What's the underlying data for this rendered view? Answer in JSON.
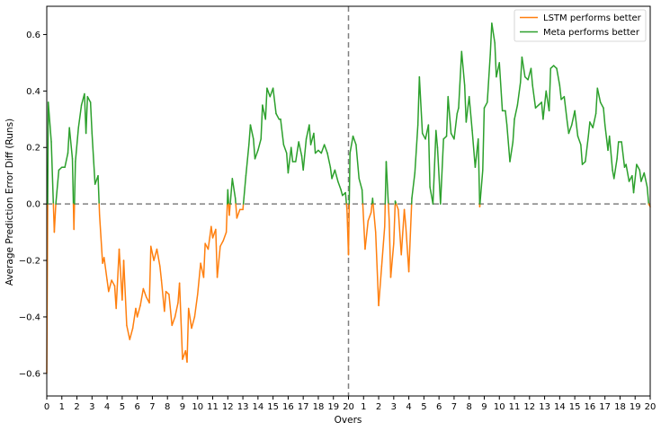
{
  "chart_data": {
    "type": "line",
    "xlabel": "Overs",
    "ylabel": "Average Prediction Error Diff (Runs)",
    "xlim": [
      0,
      40
    ],
    "ylim": [
      -0.68,
      0.7
    ],
    "x_tick_values": [
      0,
      1,
      2,
      3,
      4,
      5,
      6,
      7,
      8,
      9,
      10,
      11,
      12,
      13,
      14,
      15,
      16,
      17,
      18,
      19,
      20,
      21,
      22,
      23,
      24,
      25,
      26,
      27,
      28,
      29,
      30,
      31,
      32,
      33,
      34,
      35,
      36,
      37,
      38,
      39,
      40
    ],
    "x_tick_labels": [
      "0",
      "1",
      "2",
      "3",
      "4",
      "5",
      "6",
      "7",
      "8",
      "9",
      "10",
      "11",
      "12",
      "13",
      "14",
      "15",
      "16",
      "17",
      "18",
      "19",
      "20",
      "1",
      "2",
      "3",
      "4",
      "5",
      "6",
      "7",
      "8",
      "9",
      "10",
      "11",
      "12",
      "13",
      "14",
      "15",
      "16",
      "17",
      "18",
      "19",
      "20"
    ],
    "y_ticks": [
      -0.6,
      -0.4,
      -0.2,
      0.0,
      0.2,
      0.4,
      0.6
    ],
    "y_tick_labels": [
      "−0.6",
      "−0.4",
      "−0.2",
      "0.0",
      "0.2",
      "0.4",
      "0.6"
    ],
    "reference_lines": {
      "horizontal_y": 0.0,
      "vertical_x": 20,
      "style": "dashed",
      "color": "#808080"
    },
    "grid": false,
    "legend": {
      "position": "top-right",
      "entries": [
        {
          "label": "LSTM performs better",
          "color": "#ff7f0e"
        },
        {
          "label": "Meta performs better",
          "color": "#2ca02c"
        }
      ]
    },
    "colors": {
      "below_zero": "#ff7f0e",
      "above_zero": "#2ca02c"
    },
    "series": [
      {
        "points": [
          [
            0.0,
            -0.6
          ],
          [
            0.1,
            0.36
          ],
          [
            0.3,
            0.22
          ],
          [
            0.5,
            -0.1
          ],
          [
            0.6,
            0.0
          ],
          [
            0.8,
            0.12
          ],
          [
            1.0,
            0.13
          ],
          [
            1.2,
            0.13
          ],
          [
            1.4,
            0.18
          ],
          [
            1.5,
            0.27
          ],
          [
            1.7,
            0.16
          ],
          [
            1.8,
            -0.09
          ],
          [
            1.9,
            0.15
          ],
          [
            2.1,
            0.27
          ],
          [
            2.3,
            0.35
          ],
          [
            2.5,
            0.39
          ],
          [
            2.6,
            0.25
          ],
          [
            2.7,
            0.38
          ],
          [
            2.9,
            0.36
          ],
          [
            3.0,
            0.25
          ],
          [
            3.2,
            0.07
          ],
          [
            3.4,
            0.1
          ],
          [
            3.5,
            -0.04
          ],
          [
            3.7,
            -0.21
          ],
          [
            3.8,
            -0.19
          ],
          [
            4.0,
            -0.27
          ],
          [
            4.1,
            -0.31
          ],
          [
            4.3,
            -0.27
          ],
          [
            4.5,
            -0.29
          ],
          [
            4.6,
            -0.37
          ],
          [
            4.8,
            -0.16
          ],
          [
            5.0,
            -0.34
          ],
          [
            5.1,
            -0.2
          ],
          [
            5.3,
            -0.43
          ],
          [
            5.5,
            -0.48
          ],
          [
            5.7,
            -0.44
          ],
          [
            5.9,
            -0.37
          ],
          [
            6.0,
            -0.4
          ],
          [
            6.2,
            -0.36
          ],
          [
            6.4,
            -0.3
          ],
          [
            6.6,
            -0.33
          ],
          [
            6.8,
            -0.35
          ],
          [
            6.9,
            -0.15
          ],
          [
            7.1,
            -0.2
          ],
          [
            7.3,
            -0.16
          ],
          [
            7.5,
            -0.22
          ],
          [
            7.6,
            -0.27
          ],
          [
            7.8,
            -0.38
          ],
          [
            7.9,
            -0.31
          ],
          [
            8.1,
            -0.32
          ],
          [
            8.3,
            -0.43
          ],
          [
            8.5,
            -0.4
          ],
          [
            8.7,
            -0.35
          ],
          [
            8.8,
            -0.28
          ],
          [
            9.0,
            -0.55
          ],
          [
            9.2,
            -0.52
          ],
          [
            9.3,
            -0.56
          ],
          [
            9.4,
            -0.37
          ],
          [
            9.6,
            -0.44
          ],
          [
            9.8,
            -0.4
          ],
          [
            10.0,
            -0.32
          ],
          [
            10.2,
            -0.21
          ],
          [
            10.4,
            -0.26
          ],
          [
            10.5,
            -0.14
          ],
          [
            10.7,
            -0.16
          ],
          [
            10.9,
            -0.08
          ],
          [
            11.0,
            -0.12
          ],
          [
            11.2,
            -0.09
          ],
          [
            11.3,
            -0.26
          ],
          [
            11.5,
            -0.15
          ],
          [
            11.7,
            -0.13
          ],
          [
            11.9,
            -0.1
          ],
          [
            12.0,
            0.05
          ],
          [
            12.1,
            -0.04
          ],
          [
            12.3,
            0.09
          ],
          [
            12.5,
            0.02
          ],
          [
            12.6,
            -0.05
          ],
          [
            12.8,
            -0.02
          ],
          [
            13.0,
            -0.02
          ],
          [
            13.2,
            0.1
          ],
          [
            13.4,
            0.21
          ],
          [
            13.5,
            0.28
          ],
          [
            13.7,
            0.23
          ],
          [
            13.8,
            0.16
          ],
          [
            14.0,
            0.19
          ],
          [
            14.2,
            0.23
          ],
          [
            14.3,
            0.35
          ],
          [
            14.5,
            0.3
          ],
          [
            14.6,
            0.41
          ],
          [
            14.8,
            0.38
          ],
          [
            15.0,
            0.41
          ],
          [
            15.2,
            0.32
          ],
          [
            15.4,
            0.3
          ],
          [
            15.5,
            0.3
          ],
          [
            15.7,
            0.21
          ],
          [
            15.9,
            0.18
          ],
          [
            16.0,
            0.11
          ],
          [
            16.2,
            0.2
          ],
          [
            16.3,
            0.15
          ],
          [
            16.5,
            0.15
          ],
          [
            16.7,
            0.22
          ],
          [
            16.9,
            0.17
          ],
          [
            17.0,
            0.12
          ],
          [
            17.2,
            0.23
          ],
          [
            17.4,
            0.28
          ],
          [
            17.5,
            0.21
          ],
          [
            17.7,
            0.25
          ],
          [
            17.8,
            0.18
          ],
          [
            18.0,
            0.19
          ],
          [
            18.2,
            0.18
          ],
          [
            18.4,
            0.21
          ],
          [
            18.6,
            0.18
          ],
          [
            18.8,
            0.13
          ],
          [
            18.9,
            0.09
          ],
          [
            19.1,
            0.12
          ],
          [
            19.3,
            0.08
          ],
          [
            19.5,
            0.05
          ],
          [
            19.6,
            0.03
          ],
          [
            19.8,
            0.04
          ],
          [
            19.9,
            -0.02
          ],
          [
            20.0,
            -0.18
          ],
          [
            20.1,
            0.18
          ],
          [
            20.3,
            0.24
          ],
          [
            20.5,
            0.21
          ],
          [
            20.7,
            0.09
          ],
          [
            20.9,
            0.05
          ],
          [
            21.1,
            -0.16
          ],
          [
            21.3,
            -0.06
          ],
          [
            21.5,
            -0.03
          ],
          [
            21.6,
            0.02
          ],
          [
            21.8,
            -0.1
          ],
          [
            22.0,
            -0.36
          ],
          [
            22.2,
            -0.22
          ],
          [
            22.4,
            -0.08
          ],
          [
            22.5,
            0.15
          ],
          [
            22.7,
            -0.06
          ],
          [
            22.8,
            -0.26
          ],
          [
            23.0,
            -0.14
          ],
          [
            23.1,
            0.01
          ],
          [
            23.3,
            -0.02
          ],
          [
            23.5,
            -0.18
          ],
          [
            23.7,
            -0.02
          ],
          [
            23.8,
            -0.08
          ],
          [
            24.0,
            -0.24
          ],
          [
            24.2,
            0.02
          ],
          [
            24.4,
            0.11
          ],
          [
            24.6,
            0.28
          ],
          [
            24.7,
            0.45
          ],
          [
            24.9,
            0.25
          ],
          [
            25.1,
            0.23
          ],
          [
            25.3,
            0.28
          ],
          [
            25.4,
            0.06
          ],
          [
            25.6,
            0.0
          ],
          [
            25.8,
            0.26
          ],
          [
            25.9,
            0.2
          ],
          [
            26.1,
            0.0
          ],
          [
            26.3,
            0.23
          ],
          [
            26.5,
            0.24
          ],
          [
            26.6,
            0.38
          ],
          [
            26.8,
            0.25
          ],
          [
            27.0,
            0.23
          ],
          [
            27.2,
            0.32
          ],
          [
            27.3,
            0.34
          ],
          [
            27.5,
            0.54
          ],
          [
            27.7,
            0.42
          ],
          [
            27.8,
            0.29
          ],
          [
            28.0,
            0.38
          ],
          [
            28.2,
            0.26
          ],
          [
            28.4,
            0.13
          ],
          [
            28.6,
            0.23
          ],
          [
            28.7,
            -0.01
          ],
          [
            28.9,
            0.12
          ],
          [
            29.0,
            0.34
          ],
          [
            29.2,
            0.36
          ],
          [
            29.4,
            0.53
          ],
          [
            29.5,
            0.64
          ],
          [
            29.7,
            0.57
          ],
          [
            29.8,
            0.45
          ],
          [
            30.0,
            0.5
          ],
          [
            30.2,
            0.33
          ],
          [
            30.4,
            0.33
          ],
          [
            30.5,
            0.28
          ],
          [
            30.7,
            0.15
          ],
          [
            30.9,
            0.22
          ],
          [
            31.0,
            0.3
          ],
          [
            31.2,
            0.35
          ],
          [
            31.4,
            0.43
          ],
          [
            31.5,
            0.52
          ],
          [
            31.7,
            0.45
          ],
          [
            31.9,
            0.44
          ],
          [
            32.1,
            0.48
          ],
          [
            32.2,
            0.42
          ],
          [
            32.4,
            0.34
          ],
          [
            32.6,
            0.35
          ],
          [
            32.8,
            0.36
          ],
          [
            32.9,
            0.3
          ],
          [
            33.1,
            0.4
          ],
          [
            33.3,
            0.33
          ],
          [
            33.4,
            0.48
          ],
          [
            33.6,
            0.49
          ],
          [
            33.8,
            0.48
          ],
          [
            34.0,
            0.42
          ],
          [
            34.1,
            0.37
          ],
          [
            34.3,
            0.38
          ],
          [
            34.5,
            0.29
          ],
          [
            34.6,
            0.25
          ],
          [
            34.8,
            0.28
          ],
          [
            35.0,
            0.33
          ],
          [
            35.2,
            0.24
          ],
          [
            35.4,
            0.21
          ],
          [
            35.5,
            0.14
          ],
          [
            35.7,
            0.15
          ],
          [
            35.9,
            0.24
          ],
          [
            36.0,
            0.29
          ],
          [
            36.2,
            0.27
          ],
          [
            36.4,
            0.32
          ],
          [
            36.5,
            0.41
          ],
          [
            36.7,
            0.36
          ],
          [
            36.9,
            0.34
          ],
          [
            37.0,
            0.28
          ],
          [
            37.2,
            0.19
          ],
          [
            37.3,
            0.24
          ],
          [
            37.5,
            0.12
          ],
          [
            37.6,
            0.09
          ],
          [
            37.8,
            0.16
          ],
          [
            37.9,
            0.22
          ],
          [
            38.1,
            0.22
          ],
          [
            38.3,
            0.13
          ],
          [
            38.4,
            0.14
          ],
          [
            38.6,
            0.08
          ],
          [
            38.8,
            0.1
          ],
          [
            38.9,
            0.04
          ],
          [
            39.1,
            0.14
          ],
          [
            39.3,
            0.12
          ],
          [
            39.4,
            0.08
          ],
          [
            39.6,
            0.11
          ],
          [
            39.8,
            0.06
          ],
          [
            39.9,
            0.0
          ],
          [
            40.0,
            -0.01
          ]
        ]
      }
    ]
  }
}
